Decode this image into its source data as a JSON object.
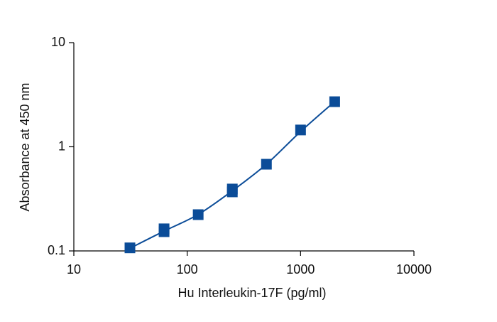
{
  "chart_data": {
    "type": "scatter",
    "x_label": "Hu Interleukin-17F (pg/ml)",
    "y_label": "Absorbance at 450 nm",
    "x_log": true,
    "y_log": true,
    "xlim": [
      10,
      10000
    ],
    "xticks": [
      10,
      100,
      1000,
      10000
    ],
    "ylim": [
      0.1,
      10
    ],
    "yticks": [
      0.1,
      1,
      10
    ],
    "series": [
      {
        "color": "#0b4c98",
        "marker": "square",
        "x": [
          31.25,
          62.5,
          62.5,
          125,
          250,
          250,
          500,
          1000,
          2000
        ],
        "values": [
          0.107,
          0.163,
          0.153,
          0.223,
          0.393,
          0.369,
          0.68,
          1.45,
          2.71
        ]
      },
      {
        "color": "#0b4c98",
        "marker": "line",
        "x": [
          31.25,
          62.5,
          125,
          250,
          500,
          1000,
          2000
        ],
        "values": [
          0.106,
          0.155,
          0.224,
          0.378,
          0.68,
          1.4,
          2.72
        ]
      }
    ]
  }
}
